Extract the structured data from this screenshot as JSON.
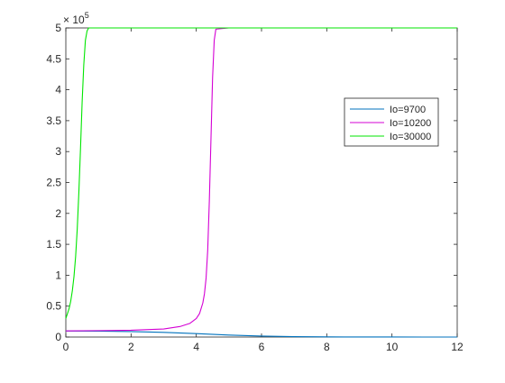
{
  "chart_data": {
    "type": "line",
    "title": "",
    "xlabel": "",
    "ylabel": "",
    "xlim": [
      0,
      12
    ],
    "ylim": [
      0,
      5
    ],
    "y_exponent_label": "× 10",
    "y_exponent_power": "5",
    "x_ticks": [
      "0",
      "2",
      "4",
      "6",
      "8",
      "10",
      "12"
    ],
    "y_ticks": [
      "0",
      "0.5",
      "1",
      "1.5",
      "2",
      "2.5",
      "3",
      "3.5",
      "4",
      "4.5",
      "5"
    ],
    "grid": false,
    "legend_position": "top-right",
    "series": [
      {
        "name": "Io=9700",
        "color": "#0072BD",
        "x": [
          0,
          1,
          2,
          3,
          4,
          5,
          6,
          7,
          8,
          9,
          10,
          11,
          12
        ],
        "y": [
          0.097,
          0.096,
          0.088,
          0.075,
          0.055,
          0.032,
          0.015,
          0.006,
          0.002,
          0.001,
          0.0005,
          0.0002,
          0.0001
        ]
      },
      {
        "name": "Io=10200",
        "color": "#D400D4",
        "x": [
          0,
          1,
          2,
          3,
          3.5,
          3.8,
          4.0,
          4.1,
          4.2,
          4.25,
          4.3,
          4.35,
          4.4,
          4.45,
          4.5,
          4.55,
          4.6,
          5,
          6,
          8,
          10,
          12
        ],
        "y": [
          0.1,
          0.104,
          0.11,
          0.13,
          0.17,
          0.22,
          0.3,
          0.38,
          0.55,
          0.7,
          0.95,
          1.4,
          2.2,
          3.2,
          4.2,
          4.8,
          4.98,
          5,
          5,
          5,
          5,
          5
        ]
      },
      {
        "name": "Io=30000",
        "color": "#00E600",
        "x": [
          0,
          0.05,
          0.1,
          0.15,
          0.2,
          0.25,
          0.3,
          0.35,
          0.4,
          0.45,
          0.5,
          0.55,
          0.6,
          0.65,
          0.7,
          1,
          2,
          4,
          6,
          8,
          10,
          12
        ],
        "y": [
          0.3,
          0.38,
          0.46,
          0.58,
          0.75,
          0.98,
          1.3,
          1.75,
          2.35,
          3.05,
          3.8,
          4.4,
          4.8,
          4.95,
          5,
          5,
          5,
          5,
          5,
          5,
          5,
          5
        ]
      }
    ]
  }
}
